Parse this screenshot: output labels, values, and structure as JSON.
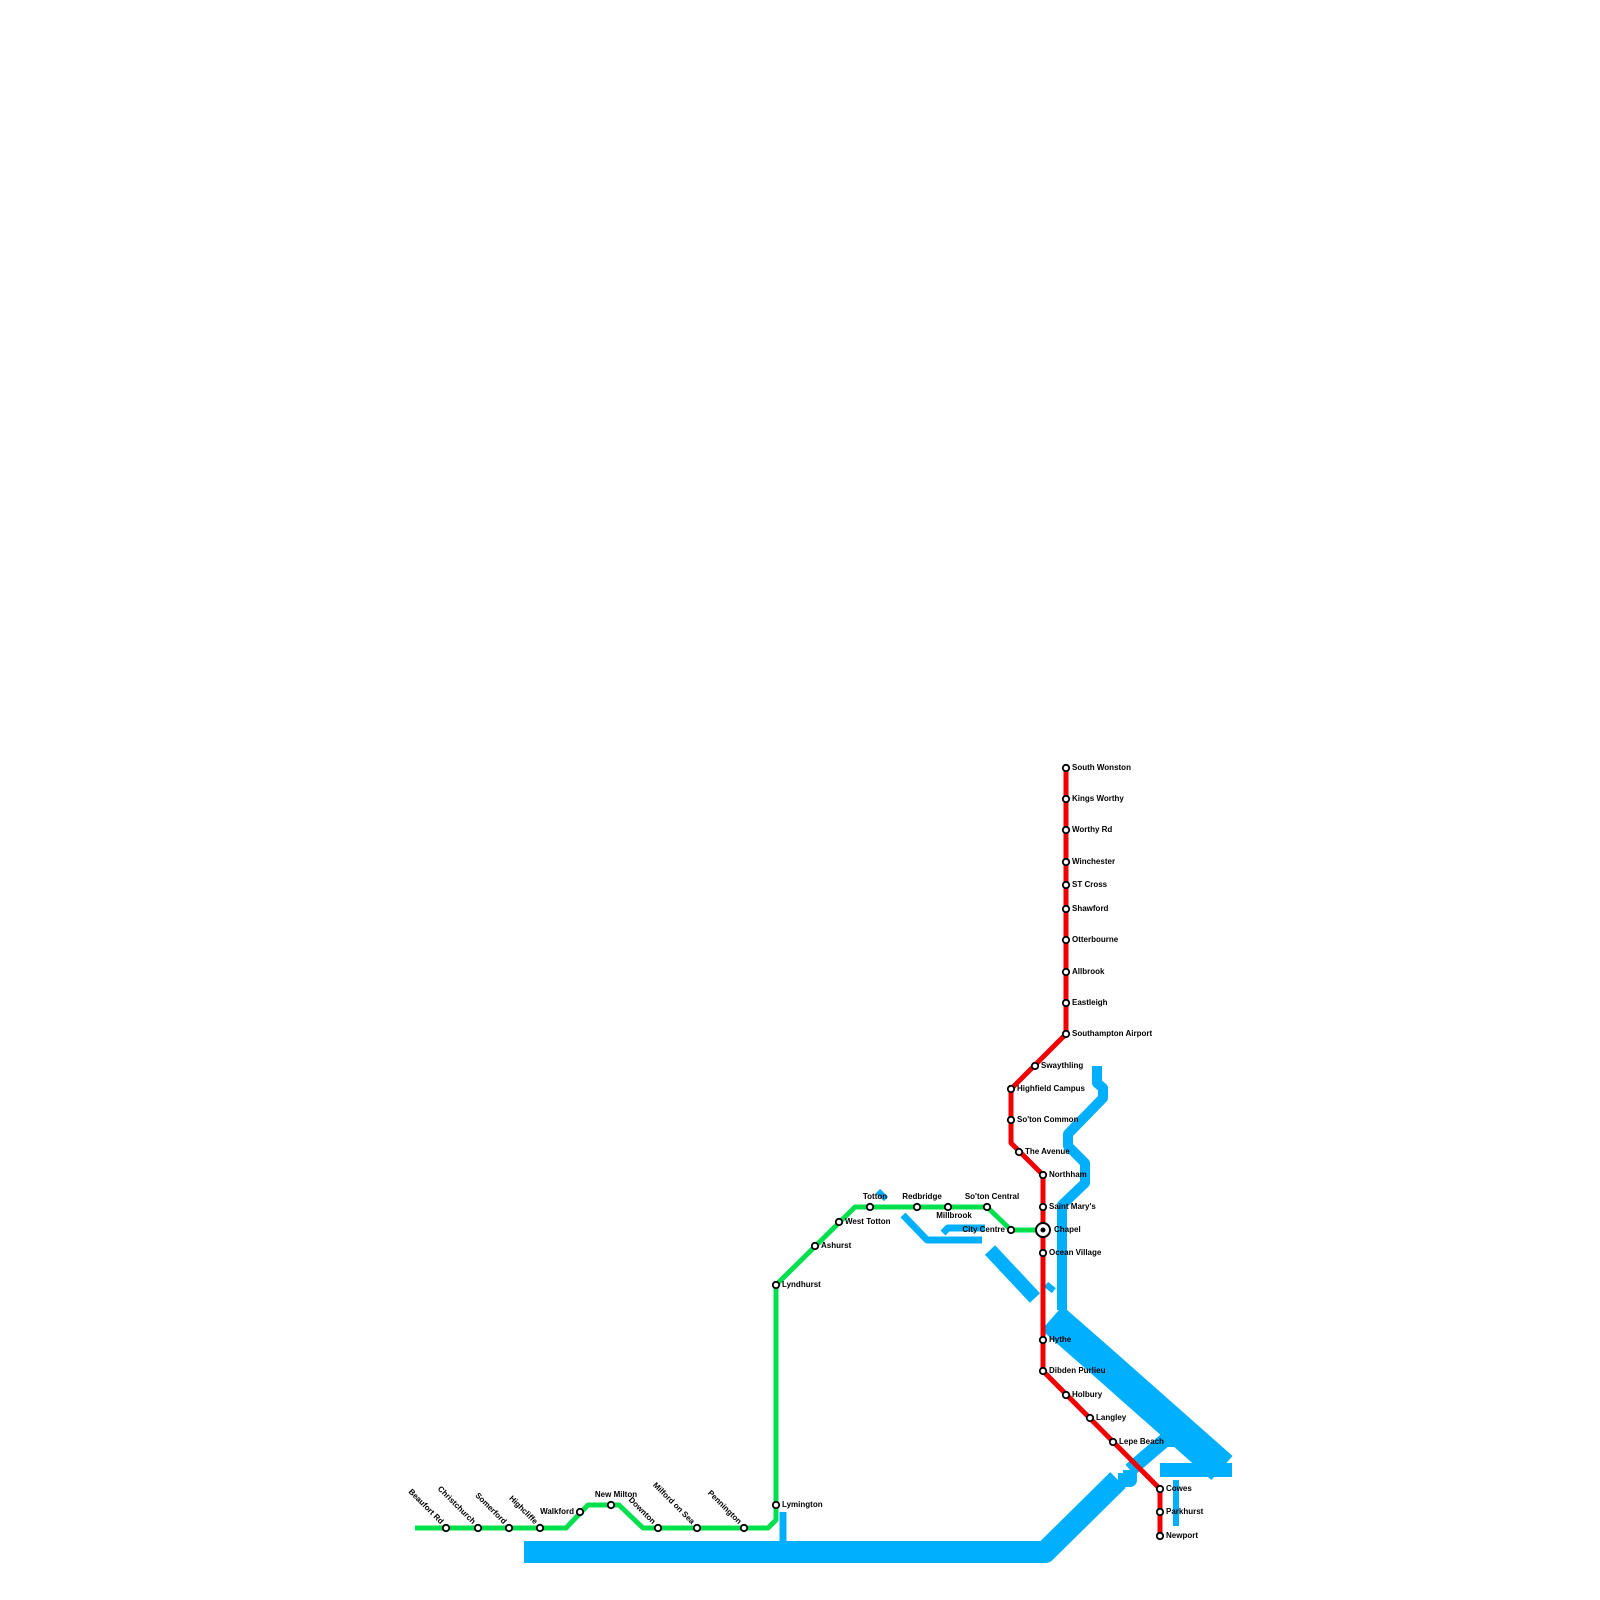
{
  "red_line": {
    "stations": [
      "South Wonston",
      "Kings Worthy",
      "Worthy Rd",
      "Winchester",
      "ST Cross",
      "Shawford",
      "Otterbourne",
      "Allbrook",
      "Eastleigh",
      "Southampton Airport",
      "Swaythling",
      "Highfield Campus",
      "So'ton Common",
      "The Avenue",
      "Northham",
      "Saint Mary's",
      "Chapel",
      "Ocean Village",
      "Hythe",
      "Dibden Purlieu",
      "Holbury",
      "Langley",
      "Lepe Beach",
      "Cowes",
      "Parkhurst",
      "Newport"
    ]
  },
  "green_line": {
    "stations": [
      "Beaufort Rd",
      "Christchurch",
      "Somerford",
      "Highcliffe",
      "Walkford",
      "New Milton",
      "Downton",
      "Milford on Sea",
      "Pennington",
      "Lymington",
      "Lyndhurst",
      "Ashurst",
      "West Totton",
      "Totton",
      "Redbridge",
      "Millbrook",
      "So'ton Central",
      "City Centre"
    ]
  }
}
